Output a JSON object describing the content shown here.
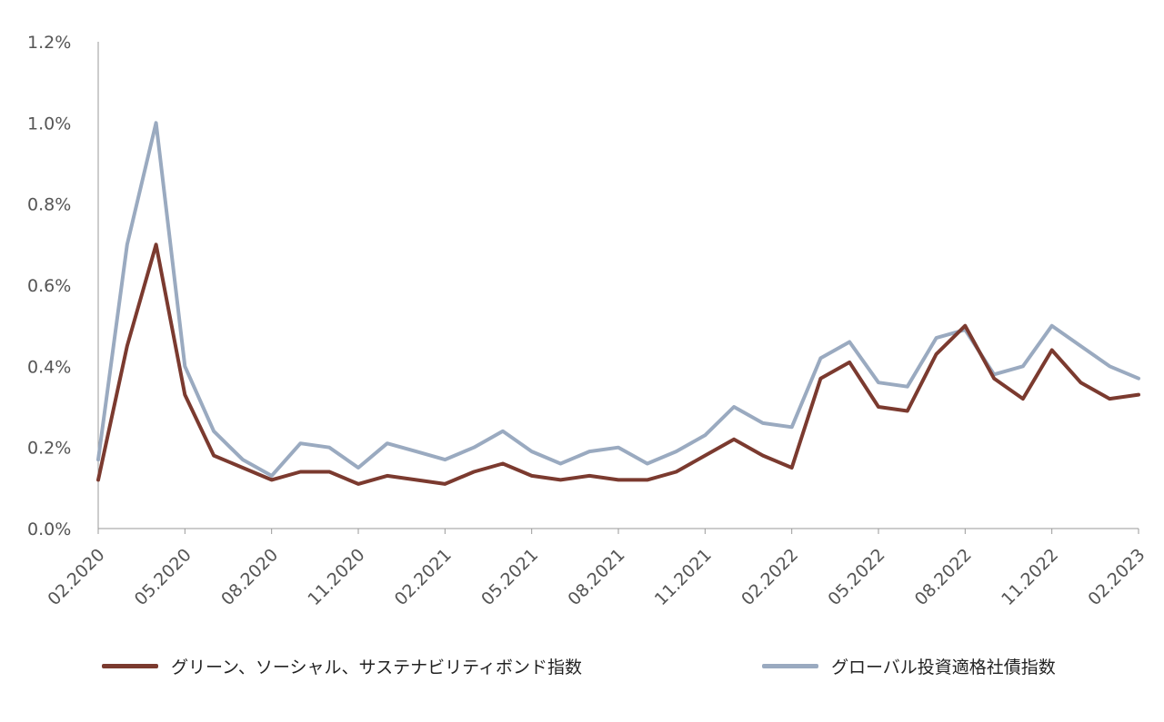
{
  "chart_data": {
    "type": "line",
    "xlabel": "",
    "ylabel": "",
    "ylim": [
      0.0,
      1.2
    ],
    "y_ticks": [
      "0.0%",
      "0.2%",
      "0.4%",
      "0.6%",
      "0.8%",
      "1.0%",
      "1.2%"
    ],
    "x_tick_labels": [
      "02.2020",
      "05.2020",
      "08.2020",
      "11.2020",
      "02.2021",
      "05.2021",
      "08.2021",
      "11.2021",
      "02.2022",
      "05.2022",
      "08.2022",
      "11.2022",
      "02.2023"
    ],
    "x_range": [
      "02.2020",
      "02.2023"
    ],
    "grid": false,
    "legend_position": "bottom",
    "x": [
      "2020-02",
      "2020-03",
      "2020-04",
      "2020-05",
      "2020-06",
      "2020-07",
      "2020-08",
      "2020-09",
      "2020-10",
      "2020-11",
      "2020-12",
      "2021-01",
      "2021-02",
      "2021-03",
      "2021-04",
      "2021-05",
      "2021-06",
      "2021-07",
      "2021-08",
      "2021-09",
      "2021-10",
      "2021-11",
      "2021-12",
      "2022-01",
      "2022-02",
      "2022-03",
      "2022-04",
      "2022-05",
      "2022-06",
      "2022-07",
      "2022-08",
      "2022-09",
      "2022-10",
      "2022-11",
      "2022-12",
      "2023-01",
      "2023-02"
    ],
    "series": [
      {
        "name": "グリーン、ソーシャル、サステナビリティボンド指数",
        "color": "#7b3a2f",
        "values": [
          0.12,
          0.45,
          0.7,
          0.33,
          0.18,
          0.15,
          0.12,
          0.14,
          0.14,
          0.11,
          0.13,
          0.12,
          0.11,
          0.14,
          0.16,
          0.13,
          0.12,
          0.13,
          0.12,
          0.12,
          0.14,
          0.18,
          0.22,
          0.18,
          0.15,
          0.37,
          0.41,
          0.3,
          0.29,
          0.43,
          0.5,
          0.37,
          0.32,
          0.44,
          0.36,
          0.32,
          0.33
        ]
      },
      {
        "name": "グローバル投資適格社債指数",
        "color": "#9aaac0",
        "values": [
          0.17,
          0.7,
          1.0,
          0.4,
          0.24,
          0.17,
          0.13,
          0.21,
          0.2,
          0.15,
          0.21,
          0.19,
          0.17,
          0.2,
          0.24,
          0.19,
          0.16,
          0.19,
          0.2,
          0.16,
          0.19,
          0.23,
          0.3,
          0.26,
          0.25,
          0.42,
          0.46,
          0.36,
          0.35,
          0.47,
          0.49,
          0.38,
          0.4,
          0.5,
          0.45,
          0.4,
          0.37
        ]
      }
    ]
  }
}
